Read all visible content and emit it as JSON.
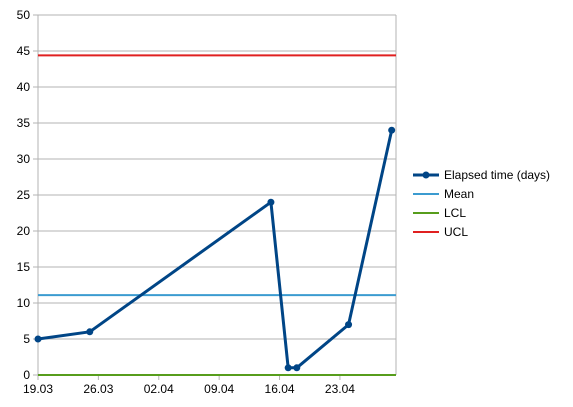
{
  "chart_data": {
    "type": "line",
    "xlabel": "",
    "ylabel": "",
    "ylim": [
      0,
      50
    ],
    "y_ticks": [
      "0",
      "5",
      "10",
      "15",
      "20",
      "25",
      "30",
      "35",
      "40",
      "45",
      "50"
    ],
    "x_ticks": [
      "19.03",
      "26.03",
      "02.04",
      "09.04",
      "16.04",
      "23.04"
    ],
    "x_range_days": [
      0,
      41.5
    ],
    "grid": "horizontal",
    "legend_position": "right",
    "series": [
      {
        "name": "Elapsed time (days)",
        "color": "#004586",
        "style": "line-with-markers",
        "x": [
          "19.03",
          "25.03",
          "15.04",
          "17.04",
          "18.04",
          "24.04",
          "29.04"
        ],
        "x_days": [
          0,
          6,
          27,
          29,
          30,
          36,
          41
        ],
        "values": [
          5,
          6,
          24,
          1,
          1,
          7,
          34
        ]
      },
      {
        "name": "Mean",
        "color": "#3b9bd0",
        "style": "constant-line",
        "value": 11.1
      },
      {
        "name": "LCL",
        "color": "#579d1c",
        "style": "constant-line",
        "value": 0
      },
      {
        "name": "UCL",
        "color": "#e02020",
        "style": "constant-line",
        "value": 44.4
      }
    ]
  }
}
